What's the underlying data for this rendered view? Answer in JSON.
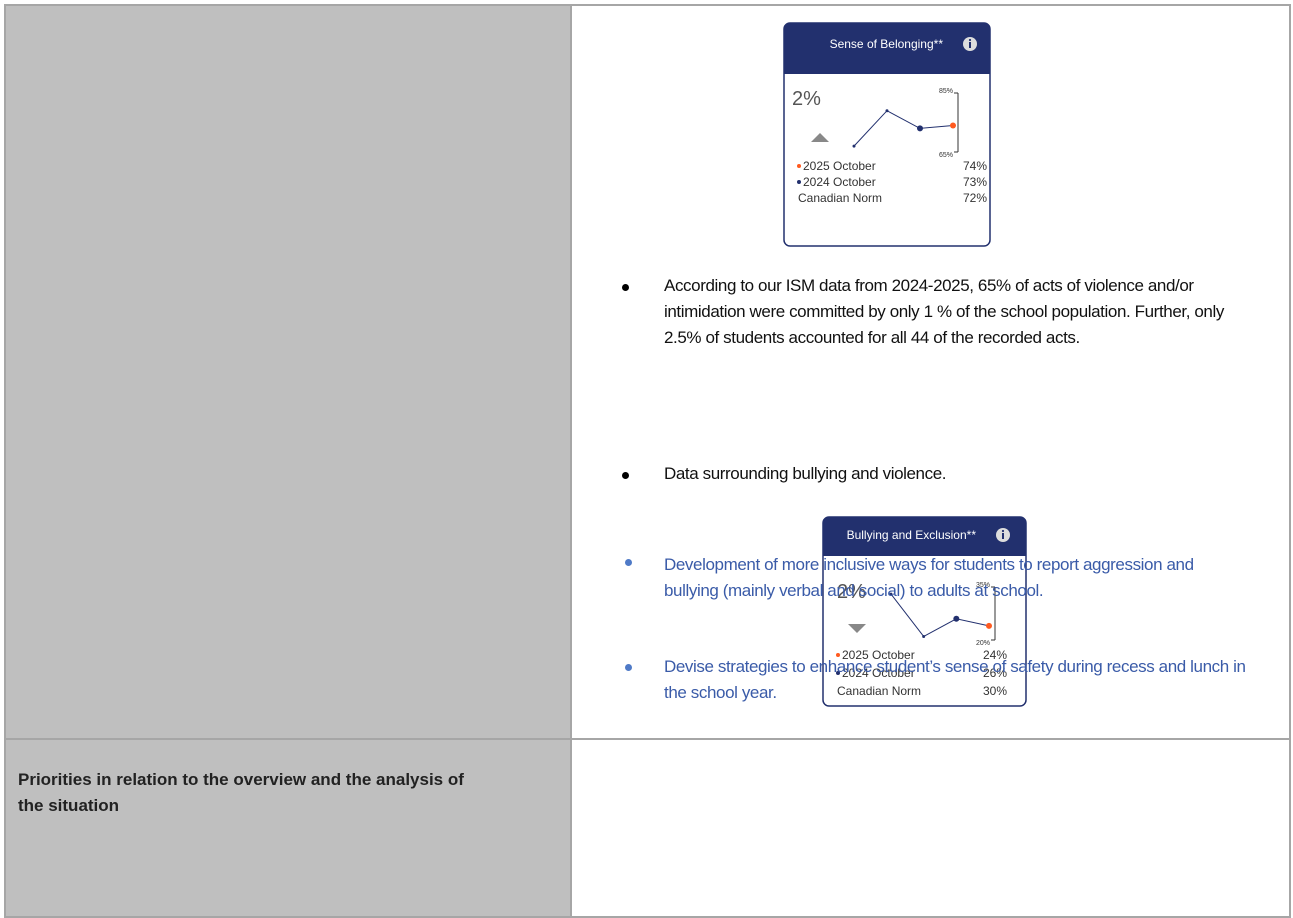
{
  "findings": {
    "cards": [
      {
        "title": "Sense of Belonging**",
        "change": "2%",
        "trend": "up",
        "ylim": [
          65,
          85
        ],
        "yticks": [
          {
            "value": 85,
            "label": "85%"
          },
          {
            "value": 65,
            "label": "65%"
          }
        ],
        "values": [
          67,
          79,
          73,
          74
        ],
        "point_colors": [
          "#22306e",
          "#22306e",
          "#22306e",
          "#ff5a1f"
        ],
        "legend": [
          {
            "name": "2025 October",
            "value": "74%",
            "color": "#ff5a1f"
          },
          {
            "name": "2024 October",
            "value": "73%",
            "color": "#22306e"
          },
          {
            "name": "Canadian Norm",
            "value": "72%"
          }
        ]
      },
      {
        "title": "Bullying and Exclusion**",
        "change": "2%",
        "trend": "down",
        "ylim": [
          20,
          35
        ],
        "yticks": [
          {
            "value": 35,
            "label": "35%"
          },
          {
            "value": 20,
            "label": "20%"
          }
        ],
        "values": [
          33,
          21,
          26,
          24
        ],
        "point_colors": [
          "#22306e",
          "#22306e",
          "#22306e",
          "#ff5a1f"
        ],
        "legend": [
          {
            "name": "2025 October",
            "value": "24%",
            "color": "#ff5a1f"
          },
          {
            "name": "2024 October",
            "value": "26%",
            "color": "#22306e"
          },
          {
            "name": "Canadian Norm",
            "value": "30%"
          }
        ]
      }
    ],
    "bullets": [
      "According to our ISM data from 2024-2025, 65% of acts of violence and/or intimidation were committed by only 1 % of the school population. Further, only 2.5% of students accounted for all 44 of the recorded acts.",
      "Data surrounding bullying and violence."
    ]
  },
  "priorities": {
    "label": "Priorities in relation to the overview and the analysis of the situation",
    "items": [
      "Development of more inclusive ways for students to report aggression and bullying (mainly verbal and social) to adults at school.",
      "Devise strategies to enhance student’s sense of safety during recess and lunch in the school year."
    ]
  }
}
